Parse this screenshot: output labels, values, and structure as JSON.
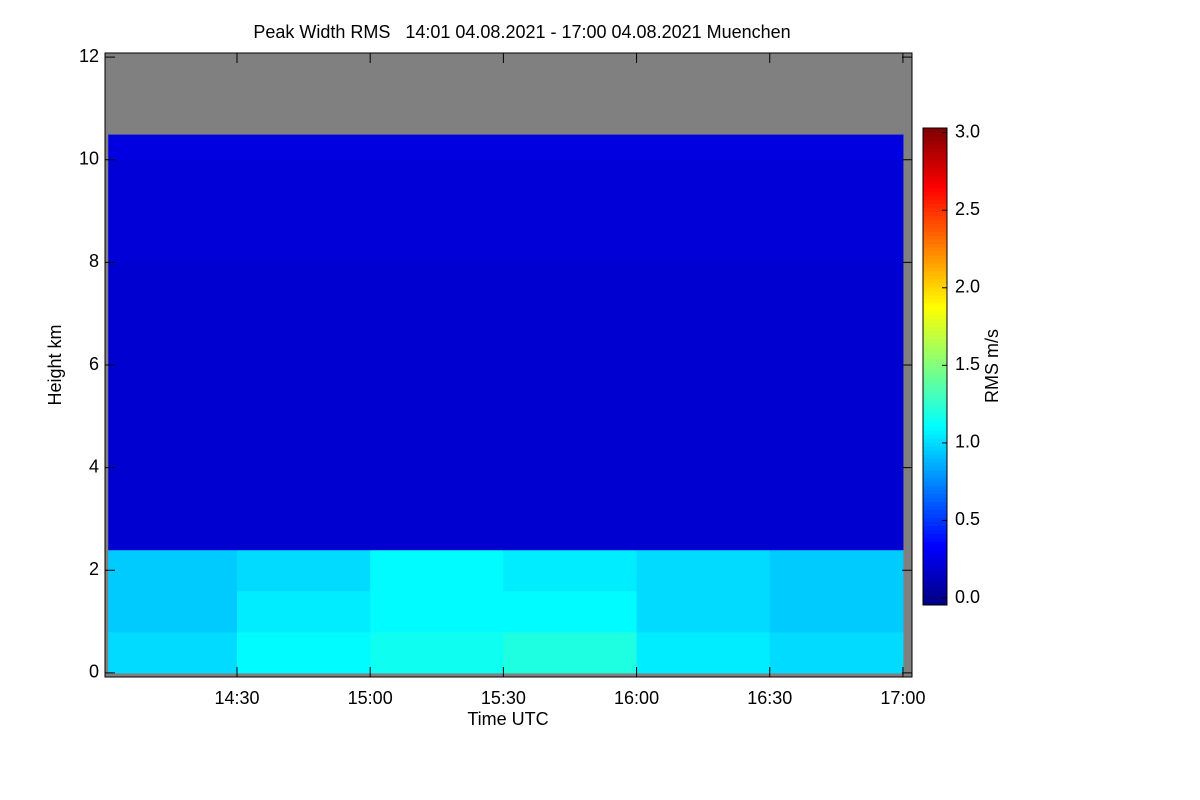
{
  "chart_data": {
    "type": "heatmap",
    "title": "Peak Width RMS   14:01 04.08.2021 - 17:00 04.08.2021 Muenchen",
    "x_label": "Time UTC",
    "y_label": "Height km",
    "colorbar_label": "RMS m/s",
    "colormap": "jet",
    "nan_color": "#808080",
    "x_edges": [
      14.0167,
      14.5,
      15.0,
      15.5,
      16.0,
      16.5,
      17.0
    ],
    "y_edges": [
      0,
      0.8,
      1.6,
      2.4,
      4,
      6,
      8,
      10,
      10.5,
      12
    ],
    "values": [
      [
        1.0,
        1.1,
        1.15,
        1.2,
        1.05,
        1.0
      ],
      [
        0.95,
        1.05,
        1.1,
        1.1,
        1.0,
        0.95
      ],
      [
        0.95,
        1.0,
        1.1,
        1.05,
        1.0,
        0.95
      ],
      [
        0.2,
        0.2,
        0.2,
        0.2,
        0.2,
        0.2
      ],
      [
        0.2,
        0.2,
        0.2,
        0.2,
        0.2,
        0.2
      ],
      [
        0.2,
        0.2,
        0.2,
        0.2,
        0.2,
        0.2
      ],
      [
        0.22,
        0.22,
        0.22,
        0.22,
        0.22,
        0.22
      ],
      [
        0.25,
        0.25,
        0.25,
        0.25,
        0.25,
        0.25
      ],
      [
        null,
        null,
        null,
        null,
        null,
        null
      ]
    ],
    "xlim": [
      14.0045,
      17.034
    ],
    "xticks": [
      {
        "value": 14.5,
        "label": "14:30"
      },
      {
        "value": 15.0,
        "label": "15:00"
      },
      {
        "value": 15.5,
        "label": "15:30"
      },
      {
        "value": 16.0,
        "label": "16:00"
      },
      {
        "value": 16.5,
        "label": "16:30"
      },
      {
        "value": 17.0,
        "label": "17:00"
      }
    ],
    "ylim": [
      -0.08,
      12.08
    ],
    "yticks": [
      0,
      2,
      4,
      6,
      8,
      10,
      12
    ],
    "clim": [
      -0.045,
      3.03
    ],
    "cticks": [
      {
        "value": 0,
        "label": "0.0"
      },
      {
        "value": 0.5,
        "label": "0.5"
      },
      {
        "value": 1,
        "label": "1.0"
      },
      {
        "value": 1.5,
        "label": "1.5"
      },
      {
        "value": 2,
        "label": "2.0"
      },
      {
        "value": 2.5,
        "label": "2.5"
      },
      {
        "value": 3,
        "label": "3.0"
      }
    ]
  }
}
